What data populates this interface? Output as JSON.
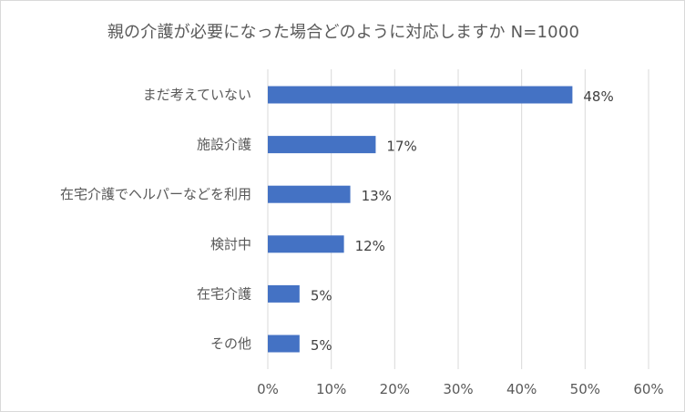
{
  "chart_data": {
    "type": "bar",
    "orientation": "horizontal",
    "title": "親の介護が必要になった場合どのように対応しますか N=1000",
    "categories": [
      "まだ考えていない",
      "施設介護",
      "在宅介護でヘルパーなどを利用",
      "検討中",
      "在宅介護",
      "その他"
    ],
    "values": [
      48,
      17,
      13,
      12,
      5,
      5
    ],
    "data_labels": [
      "48%",
      "17%",
      "13%",
      "12%",
      "5%",
      "5%"
    ],
    "xlim": [
      0,
      60
    ],
    "x_ticks": [
      "0%",
      "10%",
      "20%",
      "30%",
      "40%",
      "50%",
      "60%"
    ],
    "grid": true,
    "bar_color": "#4472c4",
    "xlabel": "",
    "ylabel": ""
  }
}
